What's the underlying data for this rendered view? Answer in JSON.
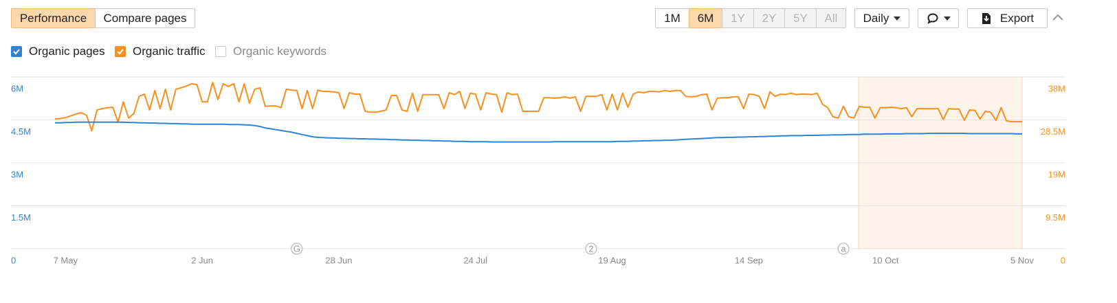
{
  "toolbar": {
    "tabs": [
      {
        "label": "Performance",
        "state": "active"
      },
      {
        "label": "Compare pages",
        "state": "normal"
      }
    ],
    "ranges": [
      {
        "label": "1M",
        "state": "normal"
      },
      {
        "label": "6M",
        "state": "active"
      },
      {
        "label": "1Y",
        "state": "disabled"
      },
      {
        "label": "2Y",
        "state": "disabled"
      },
      {
        "label": "5Y",
        "state": "disabled"
      },
      {
        "label": "All",
        "state": "disabled"
      }
    ],
    "interval": "Daily",
    "export": "Export",
    "unchecked_metrics": [
      "Organic keywords"
    ]
  },
  "chart_data": {
    "type": "line",
    "categories": [
      null,
      null,
      "7 May",
      null,
      null,
      null,
      null,
      null,
      null,
      null,
      null,
      null,
      null,
      null,
      null,
      null,
      null,
      null,
      null,
      null,
      null,
      null,
      null,
      null,
      null,
      null,
      null,
      null,
      "2 Jun",
      null,
      null,
      null,
      null,
      null,
      null,
      null,
      null,
      null,
      null,
      null,
      null,
      null,
      null,
      null,
      null,
      null,
      null,
      null,
      null,
      null,
      null,
      null,
      null,
      null,
      "28 Jun",
      null,
      null,
      null,
      null,
      null,
      null,
      null,
      null,
      null,
      null,
      null,
      null,
      null,
      null,
      null,
      null,
      null,
      null,
      null,
      null,
      null,
      null,
      null,
      null,
      null,
      "24 Jul",
      null,
      null,
      null,
      null,
      null,
      null,
      null,
      null,
      null,
      null,
      null,
      null,
      null,
      null,
      null,
      null,
      null,
      null,
      null,
      null,
      null,
      null,
      null,
      null,
      null,
      "19 Aug",
      null,
      null,
      null,
      null,
      null,
      null,
      null,
      null,
      null,
      null,
      null,
      null,
      null,
      null,
      null,
      null,
      null,
      null,
      null,
      null,
      null,
      null,
      null,
      null,
      null,
      "14 Sep",
      null,
      null,
      null,
      null,
      null,
      null,
      null,
      null,
      null,
      null,
      null,
      null,
      null,
      null,
      null,
      null,
      null,
      null,
      null,
      null,
      null,
      null,
      null,
      null,
      null,
      "10 Oct",
      null,
      null,
      null,
      null,
      null,
      null,
      null,
      null,
      null,
      null,
      null,
      null,
      null,
      null,
      null,
      null,
      null,
      null,
      null,
      null,
      null,
      null,
      null,
      null,
      null,
      "5 Nov"
    ],
    "series": [
      {
        "name": "Organic pages",
        "color": "#2f84d6",
        "axis": "y",
        "checked": true,
        "values": [
          4.4,
          4.4,
          4.41,
          4.41,
          4.42,
          4.42,
          4.42,
          4.42,
          4.42,
          4.42,
          4.42,
          4.42,
          4.42,
          4.42,
          4.41,
          4.41,
          4.4,
          4.4,
          4.39,
          4.39,
          4.38,
          4.38,
          4.37,
          4.37,
          4.36,
          4.36,
          4.35,
          4.35,
          4.35,
          4.35,
          4.35,
          4.35,
          4.35,
          4.34,
          4.34,
          4.34,
          4.33,
          4.32,
          4.3,
          4.27,
          4.22,
          4.19,
          4.16,
          4.13,
          4.1,
          4.07,
          4.03,
          3.99,
          3.95,
          3.91,
          3.89,
          3.88,
          3.87,
          3.87,
          3.86,
          3.86,
          3.85,
          3.85,
          3.84,
          3.84,
          3.83,
          3.83,
          3.82,
          3.82,
          3.81,
          3.81,
          3.8,
          3.8,
          3.79,
          3.79,
          3.78,
          3.78,
          3.77,
          3.77,
          3.76,
          3.76,
          3.75,
          3.75,
          3.75,
          3.74,
          3.74,
          3.74,
          3.74,
          3.73,
          3.73,
          3.73,
          3.73,
          3.73,
          3.73,
          3.73,
          3.73,
          3.73,
          3.73,
          3.73,
          3.73,
          3.74,
          3.74,
          3.74,
          3.74,
          3.74,
          3.74,
          3.74,
          3.74,
          3.74,
          3.74,
          3.74,
          3.74,
          3.75,
          3.75,
          3.75,
          3.76,
          3.76,
          3.77,
          3.77,
          3.78,
          3.78,
          3.79,
          3.79,
          3.8,
          3.81,
          3.82,
          3.83,
          3.84,
          3.85,
          3.86,
          3.87,
          3.88,
          3.88,
          3.89,
          3.89,
          3.9,
          3.9,
          3.91,
          3.91,
          3.92,
          3.92,
          3.93,
          3.93,
          3.94,
          3.94,
          3.95,
          3.95,
          3.95,
          3.96,
          3.96,
          3.96,
          3.97,
          3.97,
          3.98,
          3.98,
          3.98,
          3.99,
          3.99,
          3.99,
          4.0,
          4.0,
          4.0,
          4.0,
          4.01,
          4.01,
          4.01,
          4.01,
          4.02,
          4.02,
          4.02,
          4.02,
          4.03,
          4.03,
          4.03,
          4.03,
          4.03,
          4.03,
          4.03,
          4.03,
          4.02,
          4.02,
          4.02,
          4.02,
          4.02,
          4.02,
          4.02,
          4.02,
          4.02,
          4.01,
          4.01
        ]
      },
      {
        "name": "Organic traffic",
        "color": "#f7901e",
        "axis": "y2",
        "checked": true,
        "values": [
          28.7,
          28.8,
          29.0,
          29.4,
          29.8,
          30.1,
          29.5,
          26.1,
          30.7,
          31.0,
          31.2,
          31.3,
          28.0,
          32.5,
          28.9,
          29.9,
          33.7,
          34.2,
          30.7,
          35.0,
          31.0,
          35.3,
          30.7,
          35.3,
          35.6,
          36.0,
          36.5,
          36.3,
          32.5,
          32.5,
          36.8,
          33.0,
          36.5,
          35.9,
          36.5,
          32.5,
          36.5,
          32.2,
          35.3,
          35.6,
          31.5,
          31.6,
          31.6,
          31.2,
          35.3,
          35.1,
          35.0,
          31.0,
          35.0,
          31.0,
          35.1,
          34.8,
          34.8,
          34.7,
          34.5,
          31.0,
          34.5,
          34.2,
          34.2,
          30.4,
          30.2,
          30.2,
          30.4,
          30.7,
          33.9,
          33.9,
          30.7,
          30.4,
          34.4,
          30.4,
          34.1,
          34.1,
          34.1,
          34.1,
          31.0,
          34.5,
          34.1,
          34.8,
          31.0,
          34.4,
          34.2,
          30.7,
          34.5,
          34.2,
          34.1,
          30.2,
          34.5,
          34.1,
          34.2,
          30.4,
          30.4,
          30.4,
          30.4,
          33.4,
          33.4,
          33.3,
          33.4,
          33.6,
          33.3,
          33.6,
          30.4,
          33.7,
          33.7,
          33.7,
          34.1,
          30.7,
          34.2,
          30.7,
          34.4,
          31.3,
          34.2,
          34.7,
          34.5,
          34.8,
          34.8,
          34.7,
          35.0,
          34.8,
          35.0,
          35.0,
          33.7,
          33.6,
          33.7,
          34.1,
          34.2,
          30.7,
          33.3,
          33.4,
          33.4,
          33.6,
          33.6,
          31.0,
          34.2,
          34.1,
          33.7,
          31.0,
          34.7,
          33.7,
          34.2,
          34.1,
          34.4,
          34.1,
          34.2,
          34.2,
          34.1,
          34.4,
          32.0,
          31.2,
          29.2,
          28.9,
          31.5,
          29.2,
          28.9,
          31.5,
          31.3,
          31.3,
          28.9,
          31.2,
          31.2,
          31.3,
          31.2,
          31.0,
          31.2,
          29.2,
          31.0,
          31.0,
          31.0,
          31.0,
          31.0,
          28.6,
          31.0,
          30.9,
          30.9,
          28.4,
          30.7,
          30.6,
          28.7,
          30.4,
          30.2,
          28.4,
          31.2,
          28.3,
          28.1,
          28.1,
          28.1
        ]
      }
    ],
    "ylim": [
      0,
      6
    ],
    "yticks": [
      0,
      {
        "value": 1.5,
        "label": "1.5M"
      },
      {
        "value": 3,
        "label": "3M"
      },
      {
        "value": 4.5,
        "label": "4.5M"
      },
      {
        "value": 6,
        "label": "6M"
      }
    ],
    "y2lim": [
      0,
      38
    ],
    "y2ticks": [
      0,
      {
        "value": 9.5,
        "label": "9.5M"
      },
      {
        "value": 19,
        "label": "19M"
      },
      {
        "value": 28.5,
        "label": "28.5M"
      },
      {
        "value": 38,
        "label": "38M"
      }
    ],
    "grid": true,
    "annotations": [
      {
        "text": "G",
        "x": 46
      },
      {
        "text": "2",
        "x": 102
      },
      {
        "text": "a",
        "x": 150
      }
    ]
  }
}
